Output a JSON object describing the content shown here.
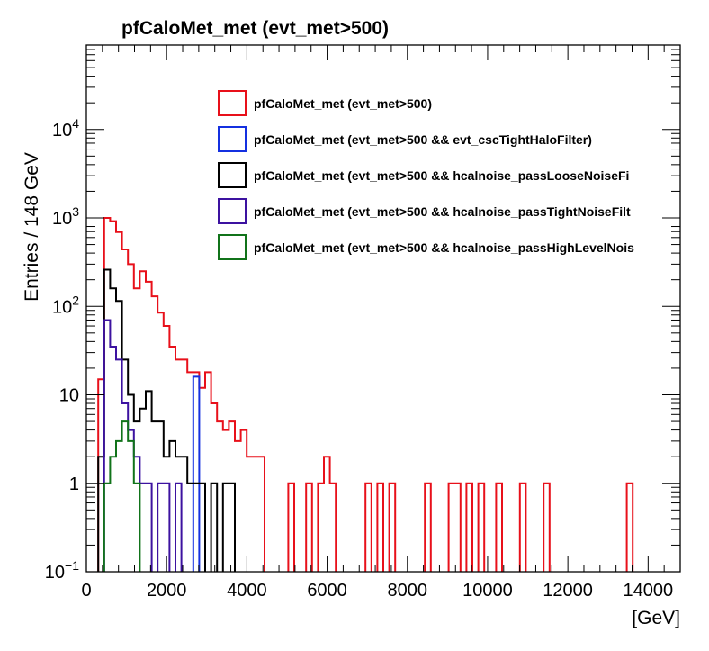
{
  "chart_data": {
    "type": "step-histogram",
    "title": "pfCaloMet_met (evt_met>500)",
    "xlabel": "[GeV]",
    "ylabel": "Entries / 148 GeV",
    "xlim": [
      0,
      14800
    ],
    "ylim": [
      0.1,
      90000
    ],
    "y_scale": "log",
    "bin_width": 148,
    "x_ticks": [
      {
        "value": 0,
        "label": "0"
      },
      {
        "value": 2000,
        "label": "2000"
      },
      {
        "value": 4000,
        "label": "4000"
      },
      {
        "value": 6000,
        "label": "6000"
      },
      {
        "value": 8000,
        "label": "8000"
      },
      {
        "value": 10000,
        "label": "10000"
      },
      {
        "value": 12000,
        "label": "12000"
      },
      {
        "value": 14000,
        "label": "14000"
      }
    ],
    "y_ticks": [
      {
        "value": 0.1,
        "base": "10",
        "exp": "−1"
      },
      {
        "value": 1,
        "base": "1",
        "exp": ""
      },
      {
        "value": 10,
        "base": "10",
        "exp": ""
      },
      {
        "value": 100,
        "base": "10",
        "exp": "2"
      },
      {
        "value": 1000,
        "base": "10",
        "exp": "3"
      },
      {
        "value": 10000,
        "base": "10",
        "exp": "4"
      }
    ],
    "legend_position": "top-right",
    "series": [
      {
        "name": "pfCaloMet_met (evt_met>500)",
        "color": "#e8101a",
        "draw_order": 0,
        "bins": [
          [
            296,
            15
          ],
          [
            444,
            1000
          ],
          [
            592,
            920
          ],
          [
            740,
            690
          ],
          [
            888,
            440
          ],
          [
            1036,
            300
          ],
          [
            1184,
            160
          ],
          [
            1332,
            250
          ],
          [
            1480,
            190
          ],
          [
            1628,
            130
          ],
          [
            1776,
            85
          ],
          [
            1924,
            60
          ],
          [
            2072,
            35
          ],
          [
            2220,
            25
          ],
          [
            2368,
            25
          ],
          [
            2516,
            18
          ],
          [
            2664,
            18
          ],
          [
            2812,
            12
          ],
          [
            2960,
            18
          ],
          [
            3108,
            8
          ],
          [
            3256,
            5
          ],
          [
            3404,
            4
          ],
          [
            3552,
            5
          ],
          [
            3700,
            3
          ],
          [
            3848,
            4
          ],
          [
            3996,
            2
          ],
          [
            4144,
            2
          ],
          [
            4292,
            2
          ],
          [
            5032,
            1
          ],
          [
            5476,
            1
          ],
          [
            5772,
            1
          ],
          [
            5920,
            2
          ],
          [
            6068,
            1
          ],
          [
            6956,
            1
          ],
          [
            7252,
            1
          ],
          [
            7548,
            1
          ],
          [
            8436,
            1
          ],
          [
            9028,
            1
          ],
          [
            9176,
            1
          ],
          [
            9472,
            1
          ],
          [
            9768,
            1
          ],
          [
            10212,
            1
          ],
          [
            10804,
            1
          ],
          [
            11396,
            1
          ],
          [
            13468,
            1
          ]
        ]
      },
      {
        "name": "pfCaloMet_met (evt_met>500 && evt_cscTightHaloFilter)",
        "color": "#1430e0",
        "draw_order": 1,
        "bins": [
          [
            2664,
            16
          ]
        ]
      },
      {
        "name": "pfCaloMet_met (evt_met>500 && hcalnoise_passLooseNoiseFi",
        "color": "#000000",
        "draw_order": 2,
        "bins": [
          [
            296,
            2
          ],
          [
            444,
            260
          ],
          [
            592,
            160
          ],
          [
            740,
            115
          ],
          [
            888,
            25
          ],
          [
            1036,
            10
          ],
          [
            1184,
            5
          ],
          [
            1332,
            7
          ],
          [
            1480,
            11
          ],
          [
            1628,
            5
          ],
          [
            1776,
            5
          ],
          [
            1924,
            2
          ],
          [
            2072,
            3
          ],
          [
            2220,
            2
          ],
          [
            2368,
            2
          ],
          [
            2516,
            1
          ],
          [
            2664,
            1
          ],
          [
            2812,
            1
          ],
          [
            3108,
            1
          ],
          [
            3404,
            1
          ],
          [
            3552,
            1
          ]
        ]
      },
      {
        "name": "pfCaloMet_met (evt_met>500 && hcalnoise_passTightNoiseFilt",
        "color": "#3c12a0",
        "draw_order": 3,
        "bins": [
          [
            444,
            70
          ],
          [
            592,
            35
          ],
          [
            740,
            25
          ],
          [
            888,
            8
          ],
          [
            1036,
            4
          ],
          [
            1184,
            2
          ],
          [
            1332,
            1
          ],
          [
            1480,
            1
          ],
          [
            1776,
            1
          ],
          [
            1924,
            1
          ],
          [
            2220,
            1
          ]
        ]
      },
      {
        "name": "pfCaloMet_met (evt_met>500 && hcalnoise_passHighLevelNois",
        "color": "#11731a",
        "draw_order": 4,
        "bins": [
          [
            444,
            1
          ],
          [
            592,
            2
          ],
          [
            740,
            3
          ],
          [
            888,
            5
          ],
          [
            1036,
            3
          ],
          [
            1184,
            1
          ]
        ]
      }
    ]
  }
}
